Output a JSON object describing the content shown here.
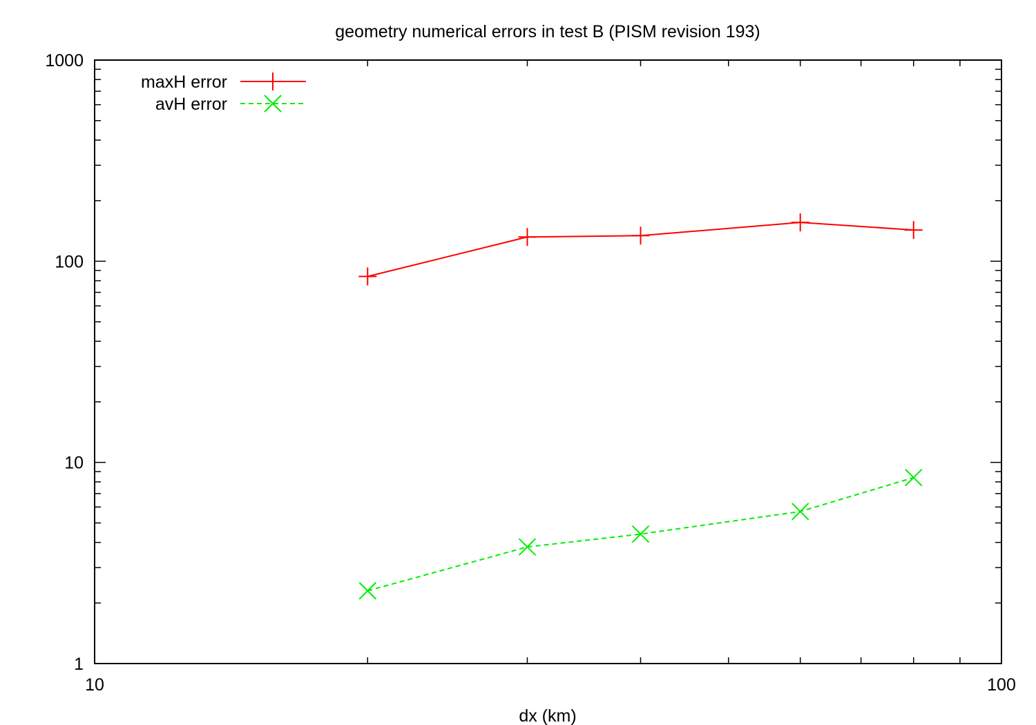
{
  "chart_data": {
    "type": "line",
    "title": "geometry   numerical errors in test B (PISM revision 193)",
    "xlabel": "dx  (km)",
    "ylabel": "",
    "x_scale": "log",
    "y_scale": "log",
    "xlim": [
      10,
      100
    ],
    "ylim": [
      1,
      1000
    ],
    "x_ticks": [
      {
        "value": 10,
        "label": "10"
      },
      {
        "value": 100,
        "label": "100"
      }
    ],
    "y_ticks": [
      {
        "value": 1,
        "label": "1"
      },
      {
        "value": 10,
        "label": "10"
      },
      {
        "value": 100,
        "label": "100"
      },
      {
        "value": 1000,
        "label": "1000"
      }
    ],
    "grid": false,
    "legend_position": "top-left",
    "series": [
      {
        "name": "maxH error",
        "color": "#ff0000",
        "line": "solid",
        "marker": "plus",
        "x": [
          20,
          30,
          40,
          60,
          80
        ],
        "y": [
          84,
          132,
          134,
          156,
          143
        ]
      },
      {
        "name": "avH error",
        "color": "#00ee00",
        "line": "dashed",
        "marker": "cross",
        "x": [
          20,
          30,
          40,
          60,
          80
        ],
        "y": [
          2.3,
          3.8,
          4.4,
          5.7,
          8.4
        ]
      }
    ]
  }
}
